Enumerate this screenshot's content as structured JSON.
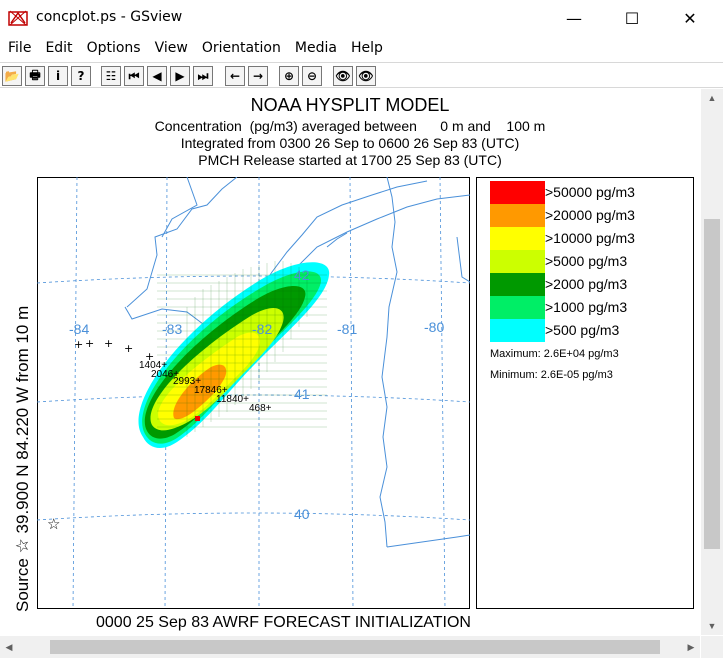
{
  "window": {
    "title": "concplot.ps - GSview",
    "minimize_glyph": "—",
    "maximize_glyph": "☐",
    "close_glyph": "✕"
  },
  "menu": [
    "File",
    "Edit",
    "Options",
    "View",
    "Orientation",
    "Media",
    "Help"
  ],
  "toolbar": {
    "buttons": [
      {
        "name": "open-icon",
        "glyph": "📂"
      },
      {
        "name": "print-icon",
        "glyph": "🖶"
      },
      {
        "name": "info-icon",
        "glyph": "i"
      },
      {
        "name": "help-icon",
        "glyph": "?"
      },
      {
        "name": "page-select-icon",
        "glyph": "☷"
      },
      {
        "name": "first-page-icon",
        "glyph": "⏮"
      },
      {
        "name": "prev-page-icon",
        "glyph": "◀"
      },
      {
        "name": "next-page-icon",
        "glyph": "▶"
      },
      {
        "name": "last-page-icon",
        "glyph": "⏭"
      },
      {
        "name": "back-icon",
        "glyph": "←"
      },
      {
        "name": "forward-icon",
        "glyph": "→"
      },
      {
        "name": "zoom-in-icon",
        "glyph": "⊕"
      },
      {
        "name": "zoom-out-icon",
        "glyph": "⊖"
      },
      {
        "name": "view-bbox-icon",
        "glyph": "👁"
      },
      {
        "name": "view-page-icon",
        "glyph": "👁"
      }
    ]
  },
  "plot": {
    "title": "NOAA HYSPLIT MODEL",
    "line1": "Concentration  (pg/m3) averaged between      0 m and    100 m",
    "line2": "Integrated from 0300 26 Sep to 0600 26 Sep 83 (UTC)",
    "line3": "PMCH Release started at 1700 25 Sep 83 (UTC)",
    "side_label": "Source ☆ 39.900  N  84.220  W    from    10 m",
    "footer": "0000 25 Sep 83 AWRF FORECAST INITIALIZATION",
    "lon_labels": [
      "-84",
      "-83",
      "-82",
      "-81",
      "-80"
    ],
    "lat_labels": [
      "42",
      "41",
      "40"
    ],
    "station_values": [
      "1404+",
      "2046+",
      "2993+",
      "17846+",
      "11840+",
      "468+"
    ],
    "source_symbol": "☆"
  },
  "legend": {
    "items": [
      {
        "label": ">50000 pg/m3",
        "color": "#ff0000"
      },
      {
        "label": ">20000 pg/m3",
        "color": "#ff9900"
      },
      {
        "label": ">10000 pg/m3",
        "color": "#ffff00"
      },
      {
        "label": ">5000 pg/m3",
        "color": "#ccff00"
      },
      {
        "label": ">2000 pg/m3",
        "color": "#009900"
      },
      {
        "label": ">1000 pg/m3",
        "color": "#00ee66"
      },
      {
        "label": ">500 pg/m3",
        "color": "#00ffff"
      }
    ],
    "maximum": "Maximum: 2.6E+04 pg/m3",
    "minimum": "Minimum: 2.6E-05 pg/m3"
  },
  "colors": {
    "map_lines": "#4a90d9",
    "grid": "#4a90d9"
  }
}
